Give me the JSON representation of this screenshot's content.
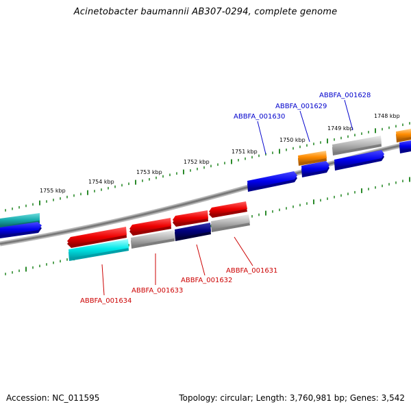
{
  "title": "Acinetobacter baumannii AB307-0294, complete genome",
  "accession": "Accession: NC_011595",
  "summary": "Topology: circular; Length: 3,760,981 bp; Genes: 3,542",
  "scale_labels": [
    "1755 kbp",
    "1754 kbp",
    "1753 kbp",
    "1752 kbp",
    "1751 kbp",
    "1750 kbp",
    "1749 kbp",
    "1748 kbp"
  ],
  "gene_labels": [
    "ABBFA_001628",
    "ABBFA_001629",
    "ABBFA_001630",
    "ABBFA_001631",
    "ABBFA_001632",
    "ABBFA_001633",
    "ABBFA_001634"
  ],
  "colors": {
    "forward_label": "#0000cc",
    "reverse_label": "#cc0000",
    "red": "#ee0000",
    "blue": "#0000ee",
    "cyan": "#00e5e5",
    "teal": "#1aaeb0",
    "grey": "#b0b0b0",
    "navy": "#000080",
    "orange": "#ff8c00",
    "tick": "#2a8a2a",
    "backbone": "#7a7a7a"
  }
}
